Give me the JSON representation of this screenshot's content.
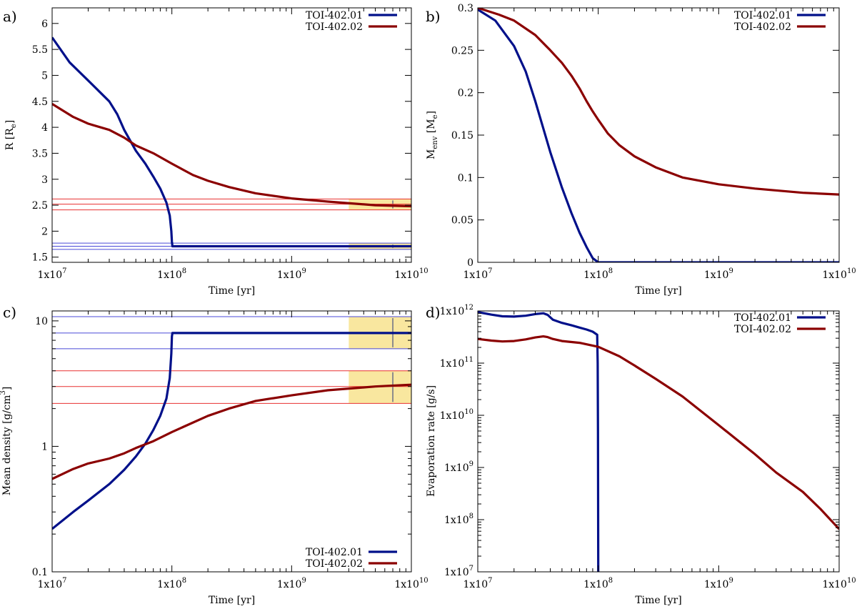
{
  "colors": {
    "planet_b": "#00108a",
    "planet_c": "#8b0000",
    "band_b": "#4a4ad8",
    "band_c": "#e83030",
    "obs_box": "#f9e79f",
    "obs_tick": "#8c8c8c"
  },
  "legend": [
    "TOI-402.01",
    "TOI-402.02"
  ],
  "chart_data": [
    {
      "panel": "a)",
      "type": "line",
      "xscale": "log",
      "yscale": "linear",
      "xlabel": "Time [yr]",
      "ylabel_main": "R [R",
      "ylabel_sub": "e",
      "ylabel_end": "]",
      "xlim": [
        10000000.0,
        10000000000.0
      ],
      "ylim": [
        1.4,
        6.3
      ],
      "x_ticks": [
        {
          "m": "1x10",
          "e": "7",
          "v": 10000000.0
        },
        {
          "m": "1x10",
          "e": "8",
          "v": 100000000.0
        },
        {
          "m": "1x10",
          "e": "9",
          "v": 1000000000.0
        },
        {
          "m": "1x10",
          "e": "10",
          "v": 10000000000.0
        }
      ],
      "y_ticks": [
        {
          "t": "1.5",
          "v": 1.5
        },
        {
          "t": "2",
          "v": 2
        },
        {
          "t": "2.5",
          "v": 2.5
        },
        {
          "t": "3",
          "v": 3
        },
        {
          "t": "3.5",
          "v": 3.5
        },
        {
          "t": "4",
          "v": 4
        },
        {
          "t": "4.5",
          "v": 4.5
        },
        {
          "t": "5",
          "v": 5
        },
        {
          "t": "5.5",
          "v": 5.5
        },
        {
          "t": "6",
          "v": 6
        }
      ],
      "legend_position": "top-right",
      "series": [
        {
          "name": "TOI-402.01",
          "color": "planet_b",
          "x": [
            10000000.0,
            14000000.0,
            20000000.0,
            25000000.0,
            30000000.0,
            35000000.0,
            40000000.0,
            50000000.0,
            60000000.0,
            70000000.0,
            80000000.0,
            90000000.0,
            96000000.0,
            99000000.0,
            100000000.0,
            101000000.0,
            200000000.0,
            1000000000.0,
            10000000000.0
          ],
          "y": [
            5.73,
            5.25,
            4.9,
            4.68,
            4.5,
            4.25,
            3.95,
            3.55,
            3.3,
            3.05,
            2.82,
            2.55,
            2.3,
            2.0,
            1.8,
            1.71,
            1.71,
            1.71,
            1.71
          ]
        },
        {
          "name": "TOI-402.02",
          "color": "planet_c",
          "x": [
            10000000.0,
            15000000.0,
            20000000.0,
            30000000.0,
            40000000.0,
            50000000.0,
            70000000.0,
            100000000.0,
            150000000.0,
            200000000.0,
            300000000.0,
            500000000.0,
            1000000000.0,
            2000000000.0,
            5000000000.0,
            10000000000.0
          ],
          "y": [
            4.45,
            4.2,
            4.07,
            3.95,
            3.8,
            3.65,
            3.5,
            3.3,
            3.08,
            2.97,
            2.85,
            2.73,
            2.63,
            2.57,
            2.5,
            2.48
          ]
        }
      ],
      "bands": [
        {
          "color": "band_c",
          "y": [
            2.62,
            2.52,
            2.41
          ]
        },
        {
          "color": "band_b",
          "y": [
            1.77,
            1.71,
            1.65
          ]
        }
      ],
      "obs_boxes": [
        {
          "x": [
            3000000000.0,
            10000000000.0
          ],
          "y": [
            2.41,
            2.62
          ],
          "tick_x": 7000000000.0
        },
        {
          "x": [
            3000000000.0,
            10000000000.0
          ],
          "y": [
            1.65,
            1.77
          ],
          "tick_x": 7000000000.0
        }
      ]
    },
    {
      "panel": "b)",
      "type": "line",
      "xscale": "log",
      "yscale": "linear",
      "xlabel": "Time [yr]",
      "ylabel_main": "M",
      "ylabel_sub": "env",
      "ylabel_end": " [M",
      "ylabel_sub2": "e",
      "ylabel_end2": "]",
      "xlim": [
        10000000.0,
        10000000000.0
      ],
      "ylim": [
        0,
        0.3
      ],
      "x_ticks": [
        {
          "m": "1x10",
          "e": "7",
          "v": 10000000.0
        },
        {
          "m": "1x10",
          "e": "8",
          "v": 100000000.0
        },
        {
          "m": "1x10",
          "e": "9",
          "v": 1000000000.0
        },
        {
          "m": "1x10",
          "e": "10",
          "v": 10000000000.0
        }
      ],
      "y_ticks": [
        {
          "t": "0",
          "v": 0
        },
        {
          "t": "0.05",
          "v": 0.05
        },
        {
          "t": "0.1",
          "v": 0.1
        },
        {
          "t": "0.15",
          "v": 0.15
        },
        {
          "t": "0.2",
          "v": 0.2
        },
        {
          "t": "0.25",
          "v": 0.25
        },
        {
          "t": "0.3",
          "v": 0.3
        }
      ],
      "legend_position": "top-right",
      "series": [
        {
          "name": "TOI-402.01",
          "color": "planet_b",
          "x": [
            10000000.0,
            14000000.0,
            20000000.0,
            25000000.0,
            30000000.0,
            40000000.0,
            50000000.0,
            60000000.0,
            70000000.0,
            80000000.0,
            90000000.0,
            100000000.0,
            1000000000.0,
            10000000000.0
          ],
          "y": [
            0.298,
            0.285,
            0.255,
            0.225,
            0.19,
            0.13,
            0.088,
            0.058,
            0.035,
            0.018,
            0.005,
            0,
            0,
            0
          ]
        },
        {
          "name": "TOI-402.02",
          "color": "planet_c",
          "x": [
            10000000.0,
            15000000.0,
            20000000.0,
            30000000.0,
            40000000.0,
            50000000.0,
            60000000.0,
            70000000.0,
            80000000.0,
            90000000.0,
            100000000.0,
            120000000.0,
            150000000.0,
            200000000.0,
            300000000.0,
            500000000.0,
            1000000000.0,
            2000000000.0,
            5000000000.0,
            10000000000.0
          ],
          "y": [
            0.3,
            0.292,
            0.285,
            0.268,
            0.25,
            0.235,
            0.22,
            0.205,
            0.19,
            0.178,
            0.168,
            0.152,
            0.138,
            0.125,
            0.112,
            0.1,
            0.092,
            0.087,
            0.082,
            0.08
          ]
        }
      ]
    },
    {
      "panel": "c)",
      "type": "line",
      "xscale": "log",
      "yscale": "log",
      "xlabel": "Time [yr]",
      "ylabel_main": "Mean density [g/cm",
      "ylabel_sup": "3",
      "ylabel_end": "]",
      "xlim": [
        10000000.0,
        10000000000.0
      ],
      "ylim": [
        0.1,
        12
      ],
      "x_ticks": [
        {
          "m": "1x10",
          "e": "7",
          "v": 10000000.0
        },
        {
          "m": "1x10",
          "e": "8",
          "v": 100000000.0
        },
        {
          "m": "1x10",
          "e": "9",
          "v": 1000000000.0
        },
        {
          "m": "1x10",
          "e": "10",
          "v": 10000000000.0
        }
      ],
      "y_ticks": [
        {
          "t": "0.1",
          "v": 0.1
        },
        {
          "t": "1",
          "v": 1
        },
        {
          "t": "10",
          "v": 10
        }
      ],
      "legend_position": "bottom-right",
      "series": [
        {
          "name": "TOI-402.01",
          "color": "planet_b",
          "x": [
            10000000.0,
            15000000.0,
            20000000.0,
            30000000.0,
            40000000.0,
            50000000.0,
            60000000.0,
            70000000.0,
            80000000.0,
            90000000.0,
            96000000.0,
            99000000.0,
            100000000.0,
            101000000.0,
            1000000000.0,
            10000000000.0
          ],
          "y": [
            0.22,
            0.3,
            0.37,
            0.5,
            0.65,
            0.83,
            1.05,
            1.35,
            1.75,
            2.4,
            3.5,
            5.5,
            7.5,
            8.0,
            8.0,
            8.0
          ]
        },
        {
          "name": "TOI-402.02",
          "color": "planet_c",
          "x": [
            10000000.0,
            15000000.0,
            20000000.0,
            30000000.0,
            40000000.0,
            50000000.0,
            70000000.0,
            100000000.0,
            200000000.0,
            300000000.0,
            500000000.0,
            1000000000.0,
            2000000000.0,
            5000000000.0,
            10000000000.0
          ],
          "y": [
            0.55,
            0.66,
            0.73,
            0.8,
            0.88,
            0.97,
            1.1,
            1.3,
            1.75,
            2.0,
            2.3,
            2.55,
            2.8,
            3.0,
            3.1
          ]
        }
      ],
      "bands": [
        {
          "color": "band_b",
          "y": [
            10.8,
            8.0,
            6.0
          ]
        },
        {
          "color": "band_c",
          "y": [
            4.0,
            3.0,
            2.2
          ]
        }
      ],
      "obs_boxes": [
        {
          "x": [
            3000000000.0,
            10000000000.0
          ],
          "y": [
            6.0,
            10.8
          ],
          "tick_x": 7000000000.0
        },
        {
          "x": [
            3000000000.0,
            10000000000.0
          ],
          "y": [
            2.2,
            4.0
          ],
          "tick_x": 7000000000.0
        }
      ]
    },
    {
      "panel": "d)",
      "type": "line",
      "xscale": "log",
      "yscale": "log",
      "xlabel": "Time [yr]",
      "ylabel_main": "Evaporation rate [g/s]",
      "xlim": [
        10000000.0,
        10000000000.0
      ],
      "ylim": [
        10000000.0,
        1000000000000.0
      ],
      "x_ticks": [
        {
          "m": "1x10",
          "e": "7",
          "v": 10000000.0
        },
        {
          "m": "1x10",
          "e": "8",
          "v": 100000000.0
        },
        {
          "m": "1x10",
          "e": "9",
          "v": 1000000000.0
        },
        {
          "m": "1x10",
          "e": "10",
          "v": 10000000000.0
        }
      ],
      "y_ticks": [
        {
          "m": "1x10",
          "e": "7",
          "v": 10000000.0
        },
        {
          "m": "1x10",
          "e": "8",
          "v": 100000000.0
        },
        {
          "m": "1x10",
          "e": "9",
          "v": 1000000000.0
        },
        {
          "m": "1x10",
          "e": "10",
          "v": 10000000000.0
        },
        {
          "m": "1x10",
          "e": "11",
          "v": 100000000000.0
        },
        {
          "m": "1x10",
          "e": "12",
          "v": 1000000000000.0
        }
      ],
      "legend_position": "top-right",
      "series": [
        {
          "name": "TOI-402.01",
          "color": "planet_b",
          "x": [
            10000000.0,
            13000000.0,
            16000000.0,
            20000000.0,
            25000000.0,
            30000000.0,
            35000000.0,
            38000000.0,
            42000000.0,
            50000000.0,
            60000000.0,
            70000000.0,
            80000000.0,
            90000000.0,
            98000000.0,
            99000000.0,
            99500000.0,
            100000000.0
          ],
          "y": [
            950000000000.0,
            850000000000.0,
            790000000000.0,
            780000000000.0,
            810000000000.0,
            870000000000.0,
            900000000000.0,
            840000000000.0,
            680000000000.0,
            590000000000.0,
            530000000000.0,
            480000000000.0,
            440000000000.0,
            400000000000.0,
            350000000000.0,
            100000000000.0,
            5000000000.0,
            10000000.0
          ]
        },
        {
          "name": "TOI-402.02",
          "color": "planet_c",
          "x": [
            10000000.0,
            13000000.0,
            16000000.0,
            20000000.0,
            25000000.0,
            30000000.0,
            35000000.0,
            38000000.0,
            42000000.0,
            50000000.0,
            70000000.0,
            100000000.0,
            150000000.0,
            200000000.0,
            300000000.0,
            500000000.0,
            1000000000.0,
            2000000000.0,
            3000000000.0,
            5000000000.0,
            7000000000.0,
            10000000000.0
          ],
          "y": [
            290000000000.0,
            270000000000.0,
            260000000000.0,
            265000000000.0,
            285000000000.0,
            310000000000.0,
            325000000000.0,
            315000000000.0,
            290000000000.0,
            265000000000.0,
            245000000000.0,
            205000000000.0,
            135000000000.0,
            90000000000.0,
            50000000000.0,
            23000000000.0,
            6500000000.0,
            1800000000.0,
            800000000.0,
            340000000.0,
            160000000.0,
            66000000.0
          ]
        }
      ]
    }
  ]
}
